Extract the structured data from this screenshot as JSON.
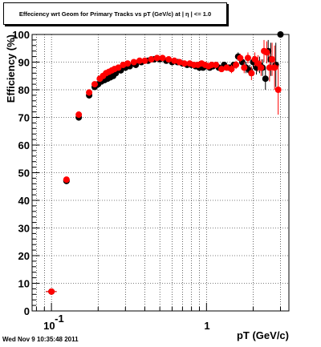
{
  "chart_data": {
    "type": "scatter",
    "title": "Effeciency wrt Geom for Primary Tracks vs pT (GeV/c) at | η | <= 1.0",
    "xlabel": "pT (GeV/c)",
    "ylabel": "Efficiency (%)",
    "x_scale": "log",
    "xlim": [
      0.075,
      3.4
    ],
    "ylim": [
      0,
      100
    ],
    "grid": true,
    "y_ticks": [
      0,
      10,
      20,
      30,
      40,
      50,
      60,
      70,
      80,
      90,
      100
    ],
    "y_tick_labels": [
      "0",
      "10",
      "20",
      "30",
      "40",
      "50",
      "60",
      "70",
      "80",
      "90",
      "100"
    ],
    "x_tick_labels": [
      {
        "x": 0.1,
        "base": "10",
        "exp": "-1"
      },
      {
        "x": 1,
        "base": "1",
        "exp": ""
      }
    ],
    "series": [
      {
        "color": "#000000",
        "x": [
          0.1,
          0.125,
          0.15,
          0.175,
          0.19,
          0.2,
          0.21,
          0.22,
          0.23,
          0.24,
          0.25,
          0.26,
          0.28,
          0.3,
          0.32,
          0.35,
          0.38,
          0.42,
          0.46,
          0.5,
          0.55,
          0.6,
          0.65,
          0.7,
          0.75,
          0.8,
          0.85,
          0.9,
          0.95,
          1.0,
          1.05,
          1.1,
          1.2,
          1.3,
          1.4,
          1.5,
          1.6,
          1.7,
          1.8,
          1.9,
          2.0,
          2.1,
          2.2,
          2.3,
          2.4,
          2.5,
          2.6,
          2.8,
          3.0
        ],
        "y": [
          7,
          47,
          70,
          78,
          81,
          82,
          83,
          83.5,
          84,
          84.5,
          85,
          86,
          87,
          88,
          88.5,
          89,
          90,
          90.5,
          91,
          91,
          90.5,
          90,
          90,
          89.5,
          89,
          89,
          88.5,
          88,
          88,
          88.5,
          88,
          88.5,
          88,
          89,
          88,
          89,
          92,
          90,
          88,
          87,
          90,
          88,
          89,
          88,
          84,
          94,
          91,
          89,
          100
        ],
        "err_y": [
          1,
          1,
          1.2,
          1.2,
          1,
          1,
          1,
          1,
          1,
          1,
          1,
          1,
          1,
          1,
          1,
          1,
          1,
          1,
          1,
          1,
          1,
          1,
          1,
          1,
          1,
          1,
          1,
          1,
          1,
          1,
          1,
          1,
          1,
          1,
          1,
          1,
          1.5,
          1.5,
          2,
          2,
          2,
          2.5,
          3,
          3,
          4,
          4,
          6,
          8,
          0
        ],
        "err_x": [
          0.008,
          0.006,
          0.006,
          0.005,
          0.005,
          0.005,
          0.005,
          0.005,
          0.005,
          0.005,
          0.005,
          0.005,
          0.01,
          0.01,
          0.01,
          0.015,
          0.015,
          0.02,
          0.02,
          0.025,
          0.025,
          0.025,
          0.025,
          0.025,
          0.025,
          0.025,
          0.025,
          0.025,
          0.025,
          0.025,
          0.025,
          0.025,
          0.05,
          0.05,
          0.05,
          0.05,
          0.05,
          0.05,
          0.05,
          0.05,
          0.05,
          0.05,
          0.05,
          0.05,
          0.05,
          0.05,
          0.05,
          0.1,
          0.1
        ]
      },
      {
        "color": "#ff0000",
        "x": [
          0.1,
          0.125,
          0.15,
          0.175,
          0.19,
          0.205,
          0.215,
          0.225,
          0.235,
          0.245,
          0.255,
          0.27,
          0.29,
          0.31,
          0.34,
          0.37,
          0.4,
          0.44,
          0.48,
          0.52,
          0.57,
          0.62,
          0.67,
          0.72,
          0.78,
          0.83,
          0.88,
          0.93,
          0.98,
          1.03,
          1.08,
          1.15,
          1.25,
          1.35,
          1.45,
          1.55,
          1.65,
          1.75,
          1.85,
          1.95,
          2.05,
          2.15,
          2.25,
          2.35,
          2.45,
          2.55,
          2.65,
          2.75,
          2.9
        ],
        "y": [
          7,
          47.5,
          71,
          79,
          82,
          84,
          85,
          86,
          86.5,
          87,
          87.5,
          88,
          89,
          89.5,
          90,
          90.5,
          90.5,
          91,
          91.5,
          91.5,
          91,
          90.5,
          90,
          89.5,
          89.5,
          89,
          89,
          89.5,
          89,
          88.5,
          89,
          89,
          87.5,
          88,
          87.5,
          89,
          91.5,
          88,
          91.5,
          86,
          91,
          89.5,
          88,
          94,
          93.5,
          88,
          91,
          88,
          80
        ],
        "err_y": [
          1,
          1,
          1.2,
          1.2,
          1,
          1,
          1,
          1,
          1,
          1,
          1,
          1,
          1,
          1,
          1,
          1,
          1,
          1,
          1,
          1,
          1,
          1,
          1,
          1,
          1,
          1,
          1,
          1,
          1,
          1,
          1,
          1,
          1,
          1,
          1.5,
          1.5,
          1.5,
          2,
          2,
          2.5,
          2.5,
          3,
          3,
          4,
          4,
          5,
          6,
          8,
          9
        ],
        "err_x": [
          0.008,
          0.006,
          0.006,
          0.005,
          0.005,
          0.005,
          0.005,
          0.005,
          0.005,
          0.005,
          0.005,
          0.005,
          0.01,
          0.01,
          0.01,
          0.015,
          0.015,
          0.02,
          0.02,
          0.025,
          0.025,
          0.025,
          0.025,
          0.025,
          0.025,
          0.025,
          0.025,
          0.025,
          0.025,
          0.025,
          0.025,
          0.025,
          0.05,
          0.05,
          0.05,
          0.05,
          0.05,
          0.05,
          0.05,
          0.05,
          0.05,
          0.05,
          0.05,
          0.05,
          0.05,
          0.05,
          0.05,
          0.05,
          0.1
        ]
      }
    ]
  },
  "footer": {
    "timestamp": "Wed Nov  9 10:35:48 2011"
  }
}
